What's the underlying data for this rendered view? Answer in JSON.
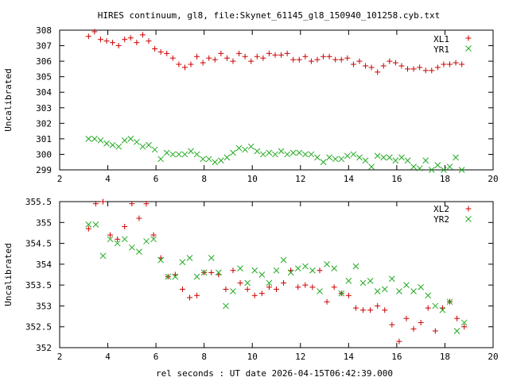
{
  "figure_title": "HIRES continuum, gl8, file:Skynet_61145_gl8_150940_101258.cyb.txt",
  "colors": {
    "red": "#cc0000",
    "green": "#22aa22"
  },
  "chart_data": [
    {
      "type": "scatter",
      "title": "HIRES continuum, gl8, file:Skynet_61145_gl8_150940_101258.cyb.txt",
      "xlabel": "",
      "ylabel": "Uncalibrated",
      "xlim": [
        2,
        20
      ],
      "ylim": [
        299,
        308
      ],
      "xticks": [
        "2",
        "4",
        "6",
        "8",
        "10",
        "12",
        "14",
        "16",
        "18",
        "20"
      ],
      "yticks": [
        "299",
        "300",
        "301",
        "302",
        "303",
        "304",
        "305",
        "306",
        "307",
        "308"
      ],
      "legend_position": "top-right",
      "series": [
        {
          "name": "XL1",
          "marker": "+",
          "color": "#cc0000",
          "x": [
            3.2,
            3.45,
            3.7,
            3.95,
            4.2,
            4.45,
            4.7,
            4.95,
            5.2,
            5.45,
            5.7,
            5.95,
            6.2,
            6.45,
            6.7,
            6.95,
            7.2,
            7.45,
            7.7,
            7.95,
            8.2,
            8.45,
            8.7,
            8.95,
            9.2,
            9.45,
            9.7,
            9.95,
            10.2,
            10.45,
            10.7,
            10.95,
            11.2,
            11.45,
            11.7,
            11.95,
            12.2,
            12.45,
            12.7,
            12.95,
            13.2,
            13.45,
            13.7,
            13.95,
            14.2,
            14.45,
            14.7,
            14.95,
            15.2,
            15.45,
            15.7,
            15.95,
            16.2,
            16.45,
            16.7,
            16.95,
            17.2,
            17.45,
            17.7,
            17.95,
            18.2,
            18.45,
            18.7
          ],
          "y": [
            307.6,
            307.9,
            307.4,
            307.3,
            307.2,
            307.0,
            307.4,
            307.5,
            307.2,
            307.7,
            307.3,
            306.8,
            306.6,
            306.5,
            306.2,
            305.8,
            305.6,
            305.8,
            306.3,
            305.9,
            306.2,
            306.1,
            306.5,
            306.2,
            306.0,
            306.5,
            306.3,
            306.0,
            306.3,
            306.2,
            306.5,
            306.4,
            306.4,
            306.5,
            306.1,
            306.1,
            306.3,
            306.0,
            306.1,
            306.3,
            306.3,
            306.1,
            306.1,
            306.2,
            305.8,
            306.0,
            305.7,
            305.6,
            305.3,
            305.7,
            306.0,
            305.9,
            305.7,
            305.5,
            305.5,
            305.6,
            305.4,
            305.4,
            305.6,
            305.8,
            305.8,
            305.9,
            305.8
          ]
        },
        {
          "name": "YR1",
          "marker": "x",
          "color": "#22aa22",
          "x": [
            3.2,
            3.45,
            3.7,
            3.95,
            4.2,
            4.45,
            4.7,
            4.95,
            5.2,
            5.45,
            5.7,
            5.95,
            6.2,
            6.45,
            6.7,
            6.95,
            7.2,
            7.45,
            7.7,
            7.95,
            8.2,
            8.45,
            8.7,
            8.95,
            9.2,
            9.45,
            9.7,
            9.95,
            10.2,
            10.45,
            10.7,
            10.95,
            11.2,
            11.45,
            11.7,
            11.95,
            12.2,
            12.45,
            12.7,
            12.95,
            13.2,
            13.45,
            13.7,
            13.95,
            14.2,
            14.45,
            14.7,
            14.95,
            15.2,
            15.45,
            15.7,
            15.95,
            16.2,
            16.45,
            16.7,
            16.95,
            17.2,
            17.45,
            17.7,
            17.95,
            18.2,
            18.45,
            18.7
          ],
          "y": [
            301.0,
            301.0,
            300.9,
            300.7,
            300.6,
            300.5,
            300.9,
            301.0,
            300.8,
            300.5,
            300.6,
            300.3,
            299.7,
            300.1,
            300.0,
            300.0,
            300.0,
            300.2,
            300.0,
            299.7,
            299.7,
            299.5,
            299.6,
            299.8,
            300.1,
            300.4,
            300.3,
            300.5,
            300.2,
            300.0,
            300.1,
            300.0,
            300.2,
            300.0,
            300.1,
            300.1,
            300.0,
            300.0,
            299.8,
            299.5,
            299.8,
            299.7,
            299.7,
            299.9,
            300.0,
            299.8,
            299.6,
            299.2,
            299.9,
            299.8,
            299.8,
            299.6,
            299.8,
            299.6,
            299.2,
            299.1,
            299.6,
            299.0,
            299.3,
            299.0,
            299.2,
            299.8,
            299.0
          ]
        }
      ]
    },
    {
      "type": "scatter",
      "title": "",
      "xlabel": "rel seconds : UT date 2026-04-15T06:42:39.000",
      "ylabel": "Uncalibrated",
      "xlim": [
        2,
        20
      ],
      "ylim": [
        352,
        355.5
      ],
      "xticks": [
        "2",
        "4",
        "6",
        "8",
        "10",
        "12",
        "14",
        "16",
        "18",
        "20"
      ],
      "yticks": [
        "352",
        "352.5",
        "353",
        "353.5",
        "354",
        "354.5",
        "355",
        "355.5"
      ],
      "legend_position": "top-right",
      "series": [
        {
          "name": "XL2",
          "marker": "+",
          "color": "#cc0000",
          "x": [
            3.2,
            3.5,
            3.8,
            4.1,
            4.4,
            4.7,
            5.0,
            5.3,
            5.6,
            5.9,
            6.2,
            6.5,
            6.8,
            7.1,
            7.4,
            7.7,
            8.0,
            8.3,
            8.6,
            8.9,
            9.2,
            9.5,
            9.8,
            10.1,
            10.4,
            10.7,
            11.0,
            11.3,
            11.6,
            11.9,
            12.2,
            12.5,
            12.8,
            13.1,
            13.4,
            13.7,
            14.0,
            14.3,
            14.6,
            14.9,
            15.2,
            15.5,
            15.8,
            16.1,
            16.4,
            16.7,
            17.0,
            17.3,
            17.6,
            17.9,
            18.2,
            18.5,
            18.8
          ],
          "y": [
            354.85,
            355.45,
            355.5,
            354.7,
            354.6,
            354.9,
            355.45,
            355.1,
            355.45,
            354.7,
            354.15,
            353.7,
            353.75,
            353.4,
            353.2,
            353.25,
            353.8,
            353.8,
            353.75,
            353.4,
            353.85,
            353.55,
            353.4,
            353.25,
            353.3,
            353.45,
            353.4,
            353.55,
            353.85,
            353.45,
            353.5,
            353.45,
            353.85,
            353.1,
            353.45,
            353.3,
            353.25,
            352.95,
            352.9,
            352.9,
            353.0,
            352.9,
            352.55,
            352.15,
            352.7,
            352.45,
            352.6,
            352.95,
            352.4,
            352.95,
            353.1,
            352.7,
            352.5
          ]
        },
        {
          "name": "YR2",
          "marker": "x",
          "color": "#22aa22",
          "x": [
            3.2,
            3.5,
            3.8,
            4.1,
            4.4,
            4.7,
            5.0,
            5.3,
            5.6,
            5.9,
            6.2,
            6.5,
            6.8,
            7.1,
            7.4,
            7.7,
            8.0,
            8.3,
            8.6,
            8.9,
            9.2,
            9.5,
            9.8,
            10.1,
            10.4,
            10.7,
            11.0,
            11.3,
            11.6,
            11.9,
            12.2,
            12.5,
            12.8,
            13.1,
            13.4,
            13.7,
            14.0,
            14.3,
            14.6,
            14.9,
            15.2,
            15.5,
            15.8,
            16.1,
            16.4,
            16.7,
            17.0,
            17.3,
            17.6,
            17.9,
            18.2,
            18.5,
            18.8
          ],
          "y": [
            354.95,
            354.95,
            354.2,
            354.6,
            354.5,
            354.6,
            354.4,
            354.3,
            354.55,
            354.6,
            354.1,
            353.7,
            353.7,
            354.05,
            354.15,
            353.7,
            353.8,
            354.15,
            353.8,
            353.0,
            353.35,
            353.9,
            353.55,
            353.85,
            353.75,
            353.55,
            353.85,
            354.1,
            353.8,
            353.9,
            353.95,
            353.85,
            353.35,
            354.0,
            353.9,
            353.3,
            353.6,
            353.95,
            353.55,
            353.6,
            353.35,
            353.4,
            353.65,
            353.35,
            353.5,
            353.35,
            353.45,
            353.25,
            353.0,
            352.9,
            353.1,
            352.4,
            352.6
          ]
        }
      ]
    }
  ]
}
